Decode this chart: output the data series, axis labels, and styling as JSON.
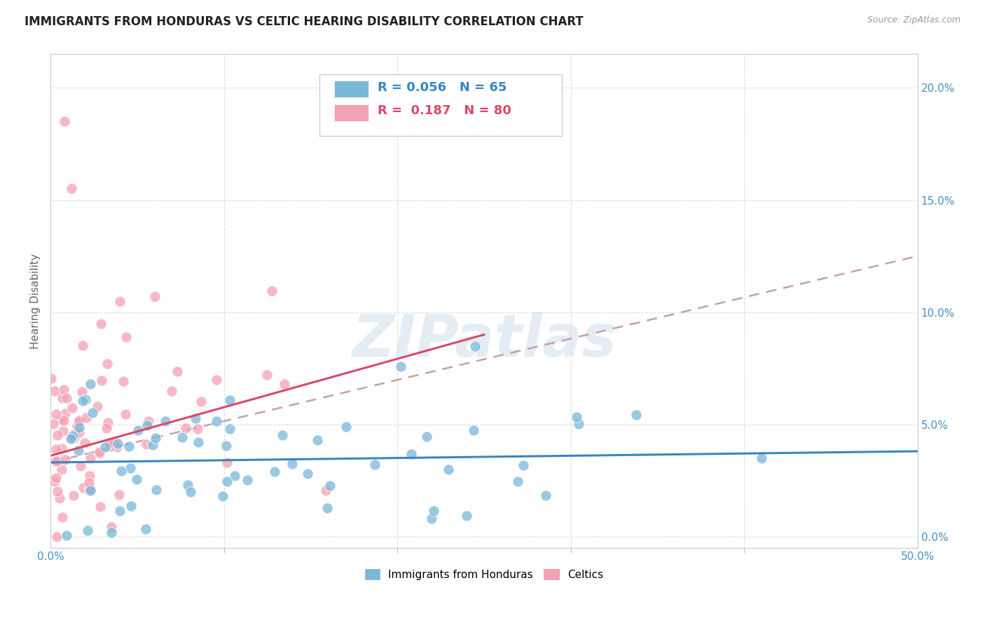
{
  "title": "IMMIGRANTS FROM HONDURAS VS CELTIC HEARING DISABILITY CORRELATION CHART",
  "source": "Source: ZipAtlas.com",
  "ylabel": "Hearing Disability",
  "xlim": [
    0.0,
    0.5
  ],
  "ylim": [
    -0.005,
    0.215
  ],
  "right_yticks": [
    0.0,
    0.05,
    0.1,
    0.15,
    0.2
  ],
  "right_yticklabels": [
    "0.0%",
    "5.0%",
    "10.0%",
    "15.0%",
    "20.0%"
  ],
  "series1_label": "Immigrants from Honduras",
  "series1_color": "#7ab8d9",
  "series1_edge": "white",
  "series2_label": "Celtics",
  "series2_color": "#f4a0b5",
  "series2_edge": "white",
  "series1_R": "0.056",
  "series1_N": "65",
  "series2_R": "0.187",
  "series2_N": "80",
  "trend1_color": "#3a85c0",
  "trend2_color": "#d9496a",
  "dash_color": "#c4a0a8",
  "watermark": "ZIPatlas",
  "seed": 99,
  "title_fontsize": 12,
  "background_color": "#ffffff"
}
